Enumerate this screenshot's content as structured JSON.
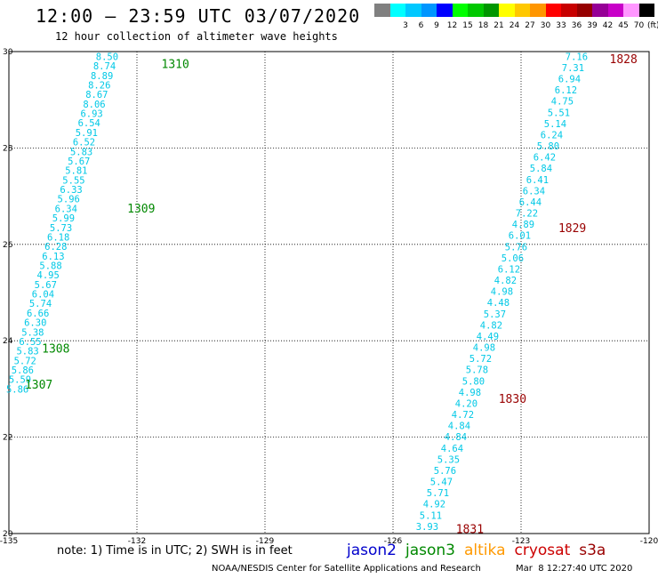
{
  "header": {
    "title": "12:00 — 23:59 UTC 03/07/2020",
    "subtitle": "12 hour collection of altimeter wave heights"
  },
  "legend": {
    "unit": "(ft)",
    "swatches": [
      {
        "color": "#808080",
        "label": ""
      },
      {
        "color": "#00ffff",
        "label": "3"
      },
      {
        "color": "#00c8ff",
        "label": "6"
      },
      {
        "color": "#0096ff",
        "label": "9"
      },
      {
        "color": "#0000ff",
        "label": "12"
      },
      {
        "color": "#00ff00",
        "label": "15"
      },
      {
        "color": "#00c800",
        "label": "18"
      },
      {
        "color": "#009600",
        "label": "21"
      },
      {
        "color": "#ffff00",
        "label": "24"
      },
      {
        "color": "#ffc800",
        "label": "27"
      },
      {
        "color": "#ff9600",
        "label": "30"
      },
      {
        "color": "#ff0000",
        "label": "33"
      },
      {
        "color": "#c80000",
        "label": "36"
      },
      {
        "color": "#960000",
        "label": "39"
      },
      {
        "color": "#960096",
        "label": "42"
      },
      {
        "color": "#c800c8",
        "label": "45"
      },
      {
        "color": "#ff96ff",
        "label": "70"
      },
      {
        "color": "#000000",
        "label": ""
      }
    ]
  },
  "map": {
    "lon_range": [
      -135,
      -120
    ],
    "lat_range": [
      20,
      30
    ],
    "lon_ticks": [
      -135,
      -132,
      -129,
      -126,
      -123,
      -120
    ],
    "lat_ticks": [
      20,
      22,
      24,
      26,
      28,
      30
    ],
    "lon_tick_labels": [
      "-135",
      "-132",
      "-129",
      "-126",
      "-123",
      "-120"
    ],
    "lat_tick_labels": [
      "20",
      "22",
      "24",
      "26",
      "28",
      "30"
    ],
    "wave_color": "#00c8e6",
    "tracks": [
      {
        "values": [
          "8.50",
          "8.74",
          "8.89",
          "8.26",
          "8.67",
          "8.06",
          "6.93",
          "6.54",
          "5.91",
          "6.52",
          "5.83",
          "5.67",
          "5.81",
          "5.55",
          "6.33",
          "5.96",
          "6.34",
          "5.99",
          "5.73",
          "6.18",
          "6.28",
          "6.13",
          "5.88",
          "4.95",
          "5.67",
          "6.04",
          "5.74",
          "6.66",
          "6.30",
          "5.38",
          "6.55",
          "5.83",
          "5.72",
          "5.86",
          "5.59",
          "5.86"
        ],
        "start": [
          -132.7,
          29.9
        ],
        "end": [
          -134.8,
          23.0
        ]
      },
      {
        "values": [
          "7.16",
          "7.31",
          "6.94",
          "6.12",
          "4.75",
          "5.51",
          "5.14",
          "6.24",
          "5.80",
          "6.42",
          "5.84",
          "6.41",
          "6.34",
          "6.44",
          "7.22",
          "4.89",
          "6.01",
          "5.76",
          "5.06",
          "6.12",
          "4.82",
          "4.98",
          "4.48",
          "5.37",
          "4.82",
          "4.49",
          "4.98",
          "5.72",
          "5.78",
          "5.80",
          "4.98",
          "4.20",
          "4.72",
          "4.84",
          "4.84",
          "4.64",
          "5.35",
          "5.76",
          "5.47",
          "5.71",
          "4.92",
          "5.11",
          "3.93"
        ],
        "start": [
          -121.7,
          29.9
        ],
        "end": [
          -125.2,
          20.15
        ]
      }
    ],
    "pass_labels": [
      {
        "text": "1310",
        "lon": -131.1,
        "lat": 29.75,
        "color": "#008800"
      },
      {
        "text": "1309",
        "lon": -131.9,
        "lat": 26.75,
        "color": "#008800"
      },
      {
        "text": "1308",
        "lon": -133.9,
        "lat": 23.85,
        "color": "#008800"
      },
      {
        "text": "1307",
        "lon": -134.3,
        "lat": 23.1,
        "color": "#008800"
      },
      {
        "text": "1828",
        "lon": -120.6,
        "lat": 29.85,
        "color": "#990000"
      },
      {
        "text": "1829",
        "lon": -121.8,
        "lat": 26.35,
        "color": "#990000"
      },
      {
        "text": "1830",
        "lon": -123.2,
        "lat": 22.8,
        "color": "#990000"
      },
      {
        "text": "1831",
        "lon": -124.2,
        "lat": 20.1,
        "color": "#990000"
      }
    ]
  },
  "footer": {
    "note": "note: 1) Time is in UTC; 2) SWH is in feet",
    "satellites": [
      {
        "name": "jason2",
        "color": "#0000cc"
      },
      {
        "name": "jason3",
        "color": "#008800"
      },
      {
        "name": "altika",
        "color": "#ff9900"
      },
      {
        "name": "cryosat",
        "color": "#cc0000"
      },
      {
        "name": "s3a",
        "color": "#990000"
      }
    ],
    "credit": "NOAA/NESDIS Center for Satellite Applications and Research",
    "timestamp": "Mar  8 12:27:40 UTC 2020"
  }
}
